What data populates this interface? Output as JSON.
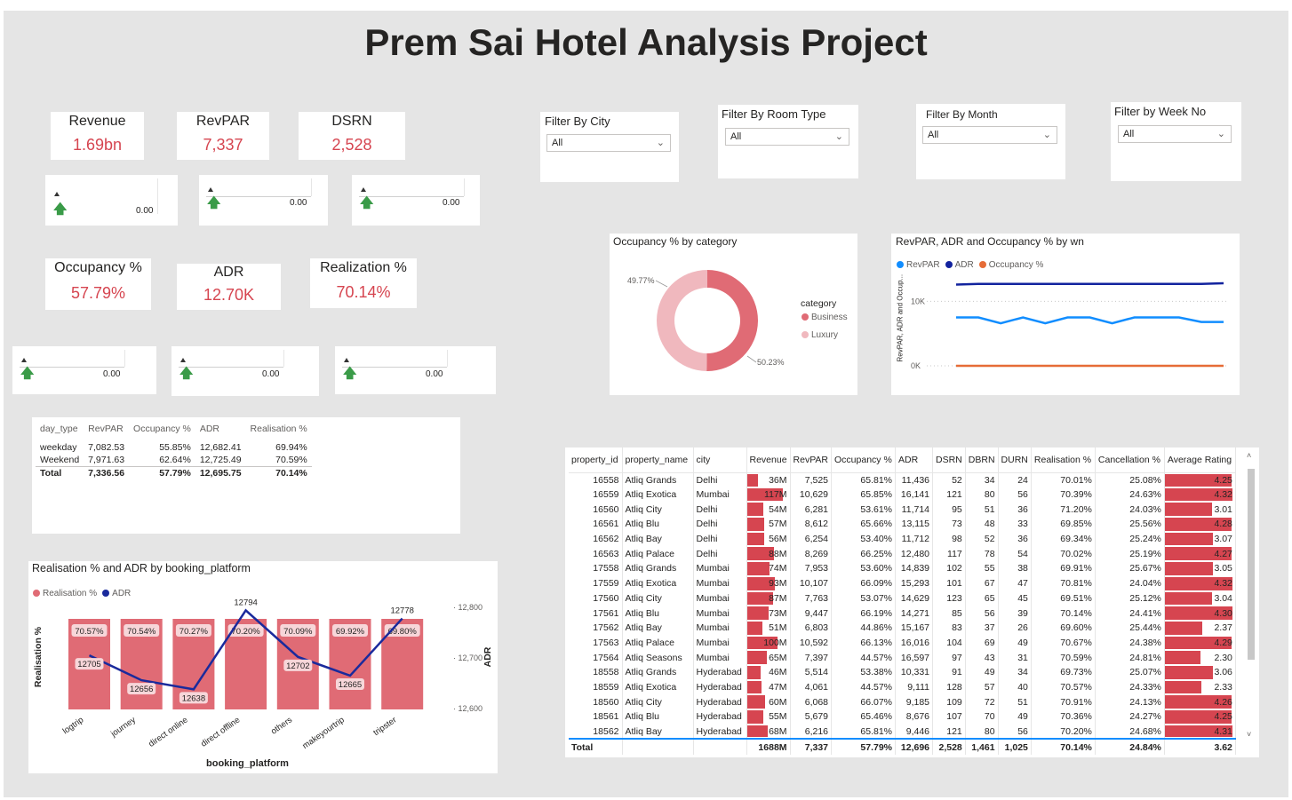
{
  "title": "Prem Sai Hotel Analysis Project",
  "kpis": [
    {
      "label": "Revenue",
      "value": "1.69bn",
      "spark_value": "0.00"
    },
    {
      "label": "RevPAR",
      "value": "7,337",
      "spark_value": "0.00"
    },
    {
      "label": "DSRN",
      "value": "2,528",
      "spark_value": "0.00"
    },
    {
      "label": "Occupancy %",
      "value": "57.79%",
      "spark_value": "0.00"
    },
    {
      "label": "ADR",
      "value": "12.70K",
      "spark_value": "0.00"
    },
    {
      "label": "Realization %",
      "value": "70.14%",
      "spark_value": "0.00"
    }
  ],
  "filters": [
    {
      "label": "Filter By City",
      "value": "All"
    },
    {
      "label": "Filter By Room Type",
      "value": "All"
    },
    {
      "label": "Filter By Month",
      "value": "All"
    },
    {
      "label": "Filter by Week No",
      "value": "All"
    }
  ],
  "donut": {
    "title": "Occupancy % by category",
    "legend_title": "category",
    "chart_data": {
      "type": "pie",
      "categories": [
        "Business",
        "Luxury"
      ],
      "values": [
        50.23,
        49.77
      ],
      "labels": [
        "50.23%",
        "49.77%"
      ],
      "colors": [
        "#e06b75",
        "#f0b8be"
      ]
    }
  },
  "line_chart": {
    "title": "RevPAR, ADR and Occupancy % by wn",
    "ylabel": "RevPAR, ADR and Occup...",
    "y_ticks": [
      "10K",
      "0K"
    ],
    "chart_data": {
      "type": "line",
      "ylim": [
        0,
        15000
      ],
      "series": [
        {
          "name": "RevPAR",
          "color": "#118dff",
          "values": [
            7500,
            7500,
            6600,
            7500,
            6600,
            7500,
            7500,
            6600,
            7500,
            7500,
            7500,
            6800,
            6800
          ]
        },
        {
          "name": "ADR",
          "color": "#12239e",
          "values": [
            12600,
            12700,
            12700,
            12700,
            12700,
            12700,
            12700,
            12700,
            12700,
            12700,
            12700,
            12700,
            12800
          ]
        },
        {
          "name": "Occupancy %",
          "color": "#e66c37",
          "values": [
            0,
            0,
            0,
            0,
            0,
            0,
            0,
            0,
            0,
            0,
            0,
            0,
            0
          ]
        }
      ]
    }
  },
  "day_type_table": {
    "headers": [
      "day_type",
      "RevPAR",
      "Occupancy %",
      "ADR",
      "Realisation %"
    ],
    "rows": [
      [
        "weekday",
        "7,082.53",
        "55.85%",
        "12,682.41",
        "69.94%"
      ],
      [
        "Weekend",
        "7,971.63",
        "62.64%",
        "12,725.49",
        "70.59%"
      ]
    ],
    "total": [
      "Total",
      "7,336.56",
      "57.79%",
      "12,695.75",
      "70.14%"
    ]
  },
  "combo_chart": {
    "title": "Realisation % and ADR by booking_platform",
    "xlabel": "booking_platform",
    "ylabel_left": "Realisation %",
    "ylabel_right": "ADR",
    "y_right_ticks": [
      "12,800",
      "12,700",
      "12,600"
    ],
    "chart_data": {
      "type": "bar",
      "categories": [
        "logtrip",
        "journey",
        "direct online",
        "direct offline",
        "others",
        "makeyourtrip",
        "tripster"
      ],
      "series": [
        {
          "name": "Realisation %",
          "color": "#e06b75",
          "values": [
            70.57,
            70.54,
            70.27,
            70.2,
            70.09,
            69.92,
            69.8
          ],
          "labels": [
            "70.57%",
            "70.54%",
            "70.27%",
            "70.20%",
            "70.09%",
            "69.92%",
            "69.80%"
          ]
        },
        {
          "name": "ADR",
          "color": "#1a2a9c",
          "values": [
            12705,
            12656,
            12638,
            12794,
            12702,
            12665,
            12778
          ],
          "labels": [
            "12705",
            "12656",
            "12638",
            "12794",
            "12702",
            "12665",
            "12778"
          ]
        }
      ],
      "ylim_right": [
        12600,
        12800
      ]
    }
  },
  "property_table": {
    "headers": [
      "property_id",
      "property_name",
      "city",
      "Revenue",
      "RevPAR",
      "Occupancy %",
      "ADR",
      "DSRN",
      "DBRN",
      "DURN",
      "Realisation %",
      "Cancellation %",
      "Average Rating"
    ],
    "rows": [
      [
        "16558",
        "Atliq Grands",
        "Delhi",
        "36M",
        "7,525",
        "65.81%",
        "11,436",
        "52",
        "34",
        "24",
        "70.01%",
        "25.08%",
        "4.25"
      ],
      [
        "16559",
        "Atliq Exotica",
        "Mumbai",
        "117M",
        "10,629",
        "65.85%",
        "16,141",
        "121",
        "80",
        "56",
        "70.39%",
        "24.63%",
        "4.32"
      ],
      [
        "16560",
        "Atliq City",
        "Delhi",
        "54M",
        "6,281",
        "53.61%",
        "11,714",
        "95",
        "51",
        "36",
        "71.20%",
        "24.03%",
        "3.01"
      ],
      [
        "16561",
        "Atliq Blu",
        "Delhi",
        "57M",
        "8,612",
        "65.66%",
        "13,115",
        "73",
        "48",
        "33",
        "69.85%",
        "25.56%",
        "4.28"
      ],
      [
        "16562",
        "Atliq Bay",
        "Delhi",
        "56M",
        "6,254",
        "53.40%",
        "11,712",
        "98",
        "52",
        "36",
        "69.34%",
        "25.24%",
        "3.07"
      ],
      [
        "16563",
        "Atliq Palace",
        "Delhi",
        "88M",
        "8,269",
        "66.25%",
        "12,480",
        "117",
        "78",
        "54",
        "70.02%",
        "25.19%",
        "4.27"
      ],
      [
        "17558",
        "Atliq Grands",
        "Mumbai",
        "74M",
        "7,953",
        "53.60%",
        "14,839",
        "102",
        "55",
        "38",
        "69.91%",
        "25.67%",
        "3.05"
      ],
      [
        "17559",
        "Atliq Exotica",
        "Mumbai",
        "93M",
        "10,107",
        "66.09%",
        "15,293",
        "101",
        "67",
        "47",
        "70.81%",
        "24.04%",
        "4.32"
      ],
      [
        "17560",
        "Atliq City",
        "Mumbai",
        "87M",
        "7,763",
        "53.07%",
        "14,629",
        "123",
        "65",
        "45",
        "69.51%",
        "25.12%",
        "3.04"
      ],
      [
        "17561",
        "Atliq Blu",
        "Mumbai",
        "73M",
        "9,447",
        "66.19%",
        "14,271",
        "85",
        "56",
        "39",
        "70.14%",
        "24.41%",
        "4.30"
      ],
      [
        "17562",
        "Atliq Bay",
        "Mumbai",
        "51M",
        "6,803",
        "44.86%",
        "15,167",
        "83",
        "37",
        "26",
        "69.60%",
        "25.44%",
        "2.37"
      ],
      [
        "17563",
        "Atliq Palace",
        "Mumbai",
        "100M",
        "10,592",
        "66.13%",
        "16,016",
        "104",
        "69",
        "49",
        "70.67%",
        "24.38%",
        "4.29"
      ],
      [
        "17564",
        "Atliq Seasons",
        "Mumbai",
        "65M",
        "7,397",
        "44.57%",
        "16,597",
        "97",
        "43",
        "31",
        "70.59%",
        "24.81%",
        "2.30"
      ],
      [
        "18558",
        "Atliq Grands",
        "Hyderabad",
        "46M",
        "5,514",
        "53.38%",
        "10,331",
        "91",
        "49",
        "34",
        "69.73%",
        "25.07%",
        "3.06"
      ],
      [
        "18559",
        "Atliq Exotica",
        "Hyderabad",
        "47M",
        "4,061",
        "44.57%",
        "9,111",
        "128",
        "57",
        "40",
        "70.57%",
        "24.33%",
        "2.33"
      ],
      [
        "18560",
        "Atliq City",
        "Hyderabad",
        "60M",
        "6,068",
        "66.07%",
        "9,185",
        "109",
        "72",
        "51",
        "70.91%",
        "24.13%",
        "4.26"
      ],
      [
        "18561",
        "Atliq Blu",
        "Hyderabad",
        "55M",
        "5,679",
        "65.46%",
        "8,676",
        "107",
        "70",
        "49",
        "70.36%",
        "24.27%",
        "4.25"
      ],
      [
        "18562",
        "Atliq Bay",
        "Hyderabad",
        "68M",
        "6,216",
        "65.81%",
        "9,446",
        "121",
        "80",
        "56",
        "70.20%",
        "24.68%",
        "4.31"
      ]
    ],
    "total": [
      "Total",
      "",
      "",
      "1688M",
      "7,337",
      "57.79%",
      "12,696",
      "2,528",
      "1,461",
      "1,025",
      "70.14%",
      "24.84%",
      "3.62"
    ]
  }
}
